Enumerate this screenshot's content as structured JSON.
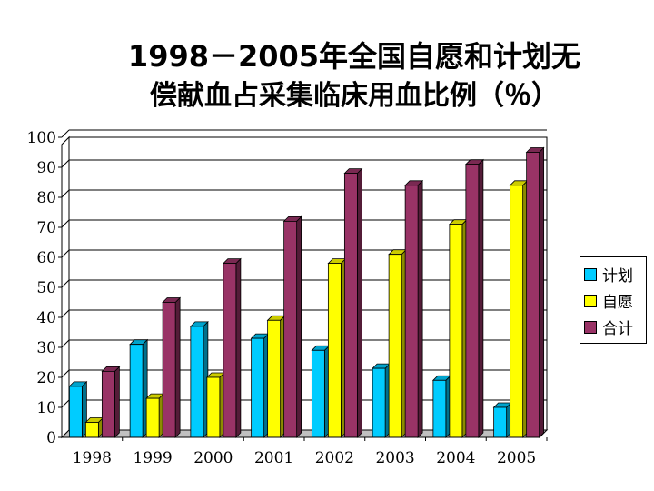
{
  "title_line1": "1998－2005年全国自愿和计划无",
  "title_line2": "偿献血占采集临床用血比例（％）",
  "chart_data": {
    "type": "bar",
    "title": "1998－2005年全国自愿和计划无偿献血占采集临床用血比例（％）",
    "xlabel": "",
    "ylabel": "",
    "categories": [
      "1998",
      "1999",
      "2000",
      "2001",
      "2002",
      "2003",
      "2004",
      "2005"
    ],
    "series": [
      {
        "name": "计划",
        "color": "#00ccff",
        "values": [
          17,
          31,
          37,
          33,
          29,
          23,
          19,
          10
        ]
      },
      {
        "name": "自愿",
        "color": "#ffff00",
        "values": [
          5,
          13,
          20,
          39,
          58,
          61,
          71,
          84
        ]
      },
      {
        "name": "合计",
        "color": "#993366",
        "values": [
          22,
          45,
          58,
          72,
          88,
          84,
          91,
          95
        ]
      }
    ],
    "ylim": [
      0,
      100
    ],
    "yticks": [
      0,
      10,
      20,
      30,
      40,
      50,
      60,
      70,
      80,
      90,
      100
    ],
    "grid": true,
    "legend": "right",
    "style": "3d-bar"
  }
}
